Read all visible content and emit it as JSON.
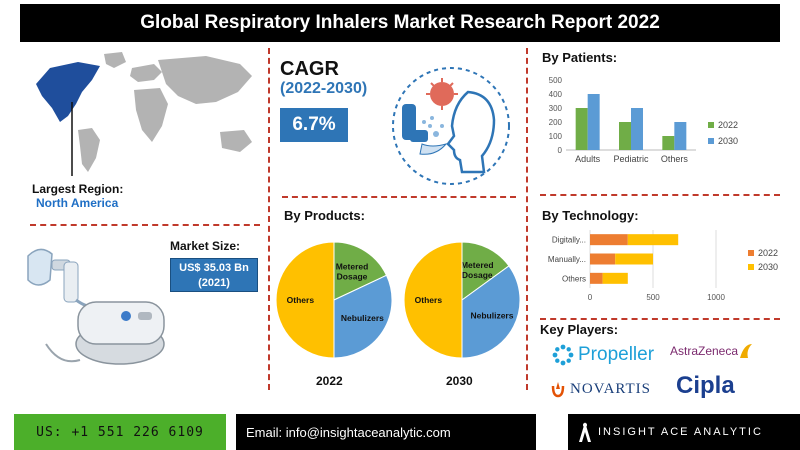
{
  "header": {
    "title": "Global Respiratory Inhalers Market Research Report 2022"
  },
  "region": {
    "label": "Largest Region:",
    "value": "North America"
  },
  "cagr": {
    "title": "CAGR",
    "years": "(2022-2030)",
    "value": "6.7%"
  },
  "market_size": {
    "label": "Market Size:",
    "line1": "US$ 35.03 Bn",
    "line2": "(2021)"
  },
  "sections": {
    "patients": "By Patients:",
    "products": "By Products:",
    "technology": "By Technology:",
    "players": "Key Players:"
  },
  "players": [
    "Propeller",
    "AstraZeneca",
    "NOVARTIS",
    "Cipla"
  ],
  "footer": {
    "phone": "US: +1 551 226 6109",
    "email": "Email: info@insightaceanalytic.com",
    "brand": "INSIGHT ACE ANALYTIC"
  },
  "colors": {
    "blue": "#5b9bd5",
    "green": "#70ad47",
    "orange": "#ed7d31",
    "yellow": "#ffc000",
    "accent": "#2e75b6"
  },
  "chart_data": [
    {
      "type": "bar",
      "title": "By Patients:",
      "categories": [
        "Adults",
        "Pediatric",
        "Others"
      ],
      "series": [
        {
          "name": "2022",
          "values": [
            300,
            200,
            100
          ],
          "color": "#70ad47"
        },
        {
          "name": "2030",
          "values": [
            400,
            300,
            200
          ],
          "color": "#5b9bd5"
        }
      ],
      "ylim": [
        0,
        500
      ],
      "yticks": [
        0,
        100,
        200,
        300,
        400,
        500
      ],
      "legend": "right"
    },
    {
      "type": "pie",
      "title": "2022",
      "labels": [
        "Metered Dosage",
        "Nebulizers",
        "Others"
      ],
      "values": [
        18,
        32,
        50
      ],
      "colors": [
        "#70ad47",
        "#5b9bd5",
        "#ffc000"
      ]
    },
    {
      "type": "pie",
      "title": "2030",
      "labels": [
        "Metered Dosage",
        "Nebulizers",
        "Others"
      ],
      "values": [
        15,
        35,
        50
      ],
      "colors": [
        "#70ad47",
        "#5b9bd5",
        "#ffc000"
      ]
    },
    {
      "type": "bar",
      "orientation": "horizontal",
      "stacked": true,
      "title": "By Technology:",
      "categories": [
        "Digitally...",
        "Manually...",
        "Others"
      ],
      "series": [
        {
          "name": "2022",
          "values": [
            300,
            200,
            100
          ],
          "color": "#ed7d31"
        },
        {
          "name": "2030",
          "values": [
            400,
            300,
            200
          ],
          "color": "#ffc000"
        }
      ],
      "xlim": [
        0,
        1000
      ],
      "xticks": [
        0,
        500,
        1000
      ],
      "legend": "right"
    }
  ]
}
